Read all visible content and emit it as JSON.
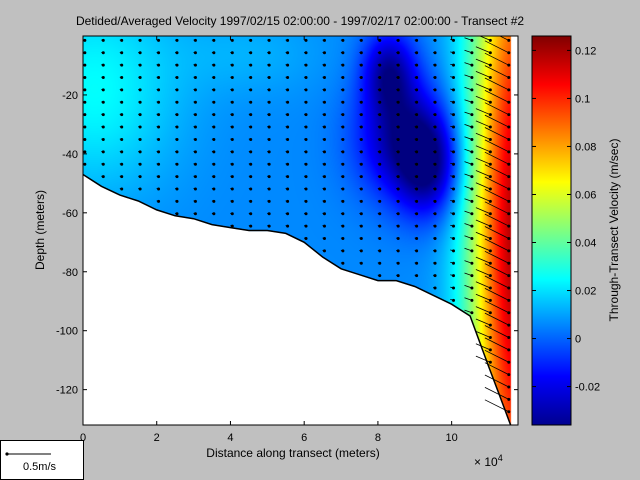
{
  "chart_data": {
    "type": "heatmap",
    "title": "Detided/Averaged Velocity  1997/02/15 02:00:00 - 1997/02/17 02:00:00 - Transect #2",
    "xlabel": "Distance along transect (meters)",
    "x_multiplier_label": "× 10",
    "x_multiplier_exp": "4",
    "ylabel": "Depth (meters)",
    "xlim": [
      0,
      11.8
    ],
    "ylim": [
      -132,
      0
    ],
    "x_ticks": [
      0,
      2,
      4,
      6,
      8,
      10
    ],
    "y_ticks": [
      -20,
      -40,
      -60,
      -80,
      -100,
      -120
    ],
    "colorbar": {
      "label": "Through-Transect Velocity (m/sec)",
      "range": [
        -0.036,
        0.126
      ],
      "ticks": [
        -0.02,
        0,
        0.02,
        0.04,
        0.06,
        0.08,
        0.1,
        0.12
      ],
      "colormap": "jet"
    },
    "bottom_profile": {
      "x": [
        0,
        0.5,
        1,
        1.5,
        2,
        2.5,
        3,
        3.5,
        4,
        4.5,
        5,
        5.5,
        6,
        6.5,
        7,
        7.5,
        8,
        8.5,
        9,
        9.5,
        10,
        10.5,
        11,
        11.3,
        11.6
      ],
      "depth": [
        -47,
        -51,
        -54,
        -56,
        -59,
        -61,
        -62,
        -64,
        -65,
        -66,
        -66,
        -67,
        -70,
        -75,
        -79,
        -81,
        -83,
        -83,
        -85,
        -88,
        -91,
        -95,
        -112,
        -122,
        -132
      ]
    },
    "velocity_features": [
      {
        "kind": "background",
        "value": 0.006
      },
      {
        "kind": "surface-cyan",
        "x": 0.3,
        "depth": -18,
        "sx": 1.6,
        "sy": 24,
        "value": 0.025
      },
      {
        "kind": "cyan-patch",
        "x": 4.5,
        "depth": -6,
        "sx": 1.4,
        "sy": 10,
        "value": 0.012
      },
      {
        "kind": "core-negative",
        "x": 8.7,
        "depth": -35,
        "sx": 0.9,
        "sy": 14,
        "value": -0.03
      },
      {
        "kind": "core-negative-upper",
        "x": 8.3,
        "depth": -12,
        "sx": 0.5,
        "sy": 10,
        "value": -0.028
      },
      {
        "kind": "core-negative-lower",
        "x": 9.4,
        "depth": -45,
        "sx": 0.6,
        "sy": 12,
        "value": -0.026
      },
      {
        "kind": "edge-positive",
        "x": 11.8,
        "depth": -70,
        "sx": 0.9,
        "sy": 90,
        "value": 0.12
      }
    ],
    "arrow_scale": {
      "label": "0.5m/s",
      "value": 0.5
    }
  }
}
